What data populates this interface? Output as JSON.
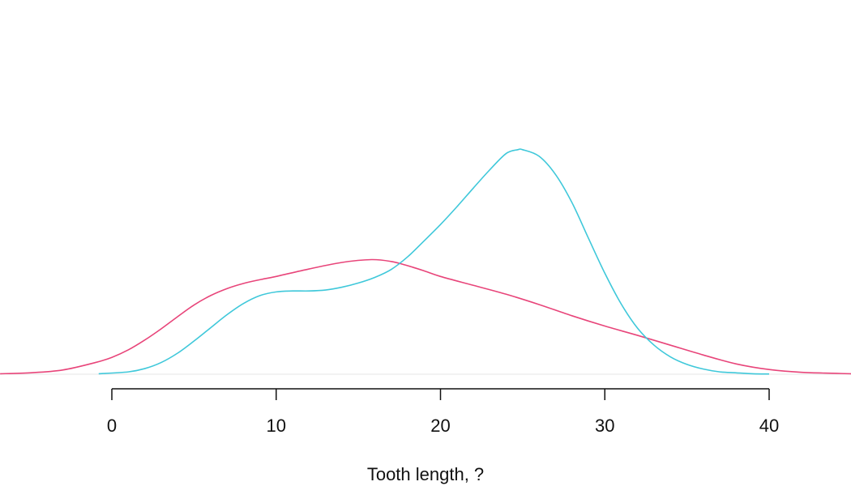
{
  "chart_data": {
    "type": "line",
    "subtype": "density",
    "xlabel": "Tooth length, ?",
    "xlim": [
      -6.8,
      45
    ],
    "x_ticks": [
      0,
      10,
      20,
      30,
      40
    ],
    "x_tick_labels": [
      "0",
      "10",
      "20",
      "30",
      "40"
    ],
    "ylim": [
      0,
      0.08
    ],
    "grid": false,
    "legend": "none",
    "series": [
      {
        "color": "#e8457a",
        "x": [
          -6.8,
          -5,
          -3,
          -1,
          0,
          1,
          2,
          3,
          4,
          5,
          6,
          7,
          8,
          9,
          10,
          12,
          14,
          15.8,
          17,
          18,
          19,
          20,
          22,
          24,
          26,
          28,
          30,
          32,
          34,
          36,
          38,
          40,
          42,
          45
        ],
        "y": [
          0.0001,
          0.0003,
          0.0009,
          0.0025,
          0.0036,
          0.0052,
          0.0073,
          0.0097,
          0.0123,
          0.0148,
          0.0168,
          0.0183,
          0.0194,
          0.0202,
          0.0209,
          0.0225,
          0.0239,
          0.0245,
          0.0241,
          0.0232,
          0.0221,
          0.0209,
          0.019,
          0.0171,
          0.0149,
          0.0125,
          0.0103,
          0.0083,
          0.0062,
          0.0041,
          0.0022,
          0.001,
          0.0004,
          0.0001
        ]
      },
      {
        "color": "#3fc8da",
        "x": [
          -0.8,
          1,
          2,
          3,
          4,
          5,
          6,
          7,
          8,
          9,
          10,
          11,
          12,
          13,
          14,
          15,
          16,
          17,
          18,
          19,
          20,
          21,
          22,
          23,
          24,
          24.7,
          25,
          26,
          27,
          28,
          29,
          30,
          31,
          32,
          33,
          34,
          35,
          36,
          37,
          38,
          39,
          40
        ],
        "y": [
          0.0001,
          0.0005,
          0.0012,
          0.0025,
          0.0045,
          0.0071,
          0.0099,
          0.0127,
          0.0151,
          0.0168,
          0.0176,
          0.0178,
          0.0178,
          0.018,
          0.0186,
          0.0195,
          0.0207,
          0.0224,
          0.0251,
          0.0285,
          0.032,
          0.0358,
          0.0398,
          0.0437,
          0.0472,
          0.048,
          0.048,
          0.0466,
          0.0427,
          0.0367,
          0.0291,
          0.0216,
          0.015,
          0.0098,
          0.0062,
          0.0037,
          0.0021,
          0.0011,
          0.0005,
          0.0003,
          0.0001,
          5e-05
        ]
      }
    ]
  }
}
